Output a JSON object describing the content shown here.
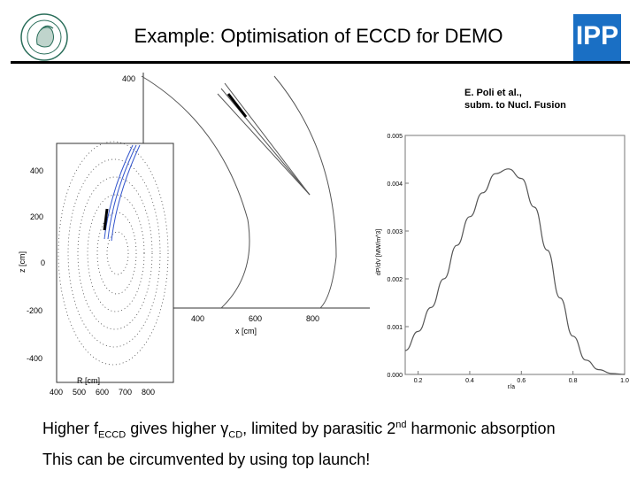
{
  "header": {
    "title": "Example: Optimisation of ECCD for DEMO",
    "left_logo_icon": "mpg-minerva-logo-icon",
    "right_logo_text": "IPP"
  },
  "reference": {
    "line1": "E. Poli et al.,",
    "line2": "subm. to Nucl. Fusion"
  },
  "top_view_plot": {
    "y_ticks": [
      "400"
    ],
    "x_ticks": [
      "400",
      "600",
      "800"
    ],
    "xlabel": "x [cm]"
  },
  "cross_section_plot": {
    "y_ticks": [
      "400",
      "200",
      "0",
      "-200",
      "-400"
    ],
    "x_ticks": [
      "400",
      "500",
      "600",
      "700",
      "800"
    ],
    "xlabel": "R [cm]",
    "ylabel": "z [cm]"
  },
  "chart_data": {
    "type": "line",
    "title": "",
    "xlabel": "r/a",
    "ylabel": "dP/dV [MW/m^3]",
    "x_ticks": [
      "0.2",
      "0.4",
      "0.6",
      "0.8",
      "1.0"
    ],
    "y_ticks": [
      "0.000",
      "0.001",
      "0.002",
      "0.003",
      "0.004",
      "0.005"
    ],
    "xlim": [
      0.15,
      1.0
    ],
    "ylim": [
      0,
      0.005
    ],
    "x": [
      0.15,
      0.2,
      0.25,
      0.3,
      0.35,
      0.4,
      0.45,
      0.5,
      0.55,
      0.6,
      0.65,
      0.7,
      0.75,
      0.8,
      0.85,
      0.9,
      0.95,
      1.0
    ],
    "y": [
      0.0005,
      0.0009,
      0.0014,
      0.002,
      0.0027,
      0.0033,
      0.0038,
      0.0042,
      0.0043,
      0.0041,
      0.0035,
      0.0026,
      0.0016,
      0.0008,
      0.0003,
      0.0001,
      2e-05,
      0.0
    ],
    "series_color": "#555555"
  },
  "captions": {
    "line1_a": "Higher f",
    "line1_sub1": "ECCD",
    "line1_b": " gives higher ",
    "line1_gamma": "γ",
    "line1_sub2": "CD",
    "line1_c": ", limited by parasitic 2",
    "line1_sup": "nd",
    "line1_d": " harmonic absorption",
    "line2": "This can be circumvented by using top launch!"
  }
}
